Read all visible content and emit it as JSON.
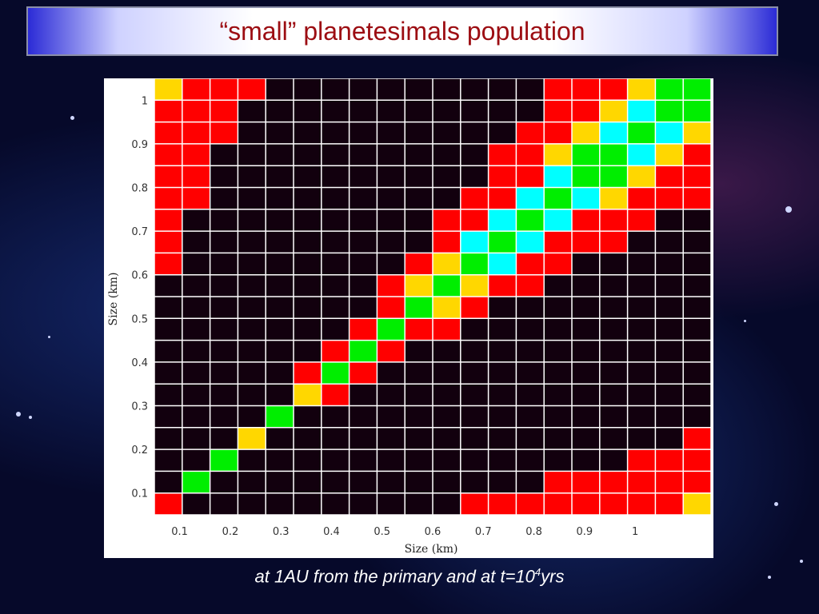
{
  "slide": {
    "title": "“small” planetesimals population",
    "caption_main": "at 1AU from the primary and at t=10",
    "caption_sup": "4",
    "caption_end": "yrs"
  },
  "chart_data": {
    "type": "heatmap",
    "xlabel": "Size (km)",
    "ylabel": "Size (km)",
    "x_ticks": [
      0.1,
      0.2,
      0.3,
      0.4,
      0.5,
      0.6,
      0.7,
      0.8,
      0.9,
      1
    ],
    "y_ticks": [
      0.1,
      0.2,
      0.3,
      0.4,
      0.5,
      0.6,
      0.7,
      0.8,
      0.9,
      1
    ],
    "x_range": [
      0.05,
      1.15
    ],
    "y_range": [
      0.05,
      1.05
    ],
    "n_cols": 20,
    "n_rows": 20,
    "row_order": "top-to-bottom",
    "color_key": {
      "K": "#12000e",
      "R": "#ff0000",
      "Y": "#ffd700",
      "G": "#00ee00",
      "C": "#00ffff"
    },
    "cells": [
      "YRRRKKKKKKKKKKRRRYGG",
      "RRRKKKKKKKKKKKRRYCGG",
      "RRRKKKKKKKKKKRRYCGCY",
      "RRKKKKKKKKKKRRYGGCYR",
      "RRKKKKKKKKKKRRCGGYRR",
      "RRKKKKKKKKKRRCGCYRRR",
      "RKKKKKKKKKRRCGCRRRKK",
      "RKKKKKKKKKRCGCRRRKKK",
      "RKKKKKKKKRYGCRRKKKKK",
      "KKKKKKKKRYGYRRKKKKKK",
      "KKKKKKKKRGYRKKKKKKKK",
      "KKKKKKKRGRRKKKKKKKKK",
      "KKKKKKRGRKKKKKKKKKKK",
      "KKKKKRGRKKKKKKKKKKKK",
      "KKKKKYRKKKKKKKKKKKKK",
      "KKKKGKKKKKKKKKKKKKKK",
      "KKKYKKKKKKKKKKKKKKKR",
      "KKGKKKKKKKKKKKKKKRRR",
      "KGKKKKKKKKKKKKRRRRRR",
      "RKKKKKKKKKKRRRRRRRRY"
    ]
  }
}
